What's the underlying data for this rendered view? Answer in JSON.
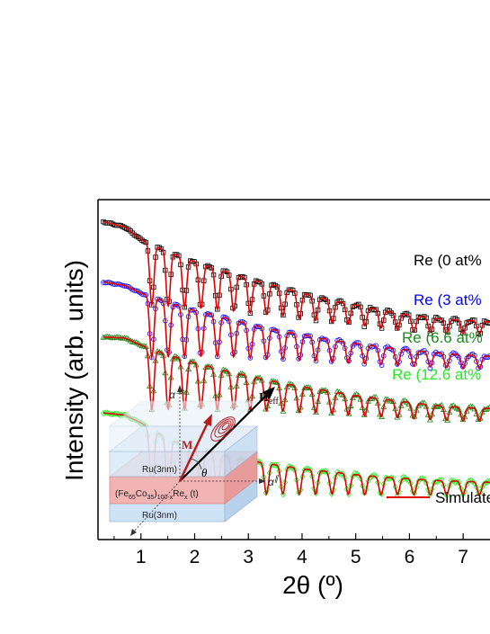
{
  "chart_data": {
    "type": "line",
    "xlabel": "2θ (º)",
    "ylabel": "Intensity (arb. units)",
    "xlim": [
      0.2,
      7.5
    ],
    "x_ticks": [
      "1",
      "2",
      "3",
      "4",
      "5",
      "6",
      "7"
    ],
    "log_y": true,
    "y_ticks_shown": false,
    "series": [
      {
        "name": "Re (0 at%",
        "color": "#000000",
        "fit_color": "#e00000",
        "marker": "square",
        "x": [
          0.3,
          0.7,
          1.0,
          1.5,
          2.0,
          2.5,
          3.0,
          3.5,
          4.0,
          4.5,
          5.0,
          5.5,
          6.0,
          6.5,
          7.0,
          7.5
        ],
        "y": [
          100,
          90,
          70,
          55,
          45,
          38,
          32,
          28,
          24,
          21,
          19,
          17,
          15.5,
          14.5,
          14,
          13.5
        ]
      },
      {
        "name": "Re (3 at%",
        "color": "#0000ff",
        "fit_color": "#e00000",
        "marker": "circle",
        "x": [
          0.3,
          0.7,
          1.0,
          1.5,
          2.0,
          2.5,
          3.0,
          3.5,
          4.0,
          4.5,
          5.0,
          5.5,
          6.0,
          6.5,
          7.0,
          7.5
        ],
        "y": [
          30,
          28,
          24,
          20,
          17,
          15,
          13,
          11.5,
          10.5,
          9.5,
          8.8,
          8.2,
          7.7,
          7.3,
          7.0,
          6.8
        ]
      },
      {
        "name": "Re (6.6 at%",
        "color": "#1a8a1a",
        "fit_color": "#e00000",
        "marker": "triangle",
        "x": [
          0.3,
          0.7,
          1.0,
          1.5,
          2.0,
          2.5,
          3.0,
          3.5,
          4.0,
          4.5,
          5.0,
          5.5,
          6.0,
          6.5,
          7.0,
          7.5
        ],
        "y": [
          10,
          9.8,
          8.5,
          7.0,
          6.0,
          5.2,
          4.6,
          4.1,
          3.7,
          3.4,
          3.1,
          2.9,
          2.7,
          2.55,
          2.45,
          2.4
        ]
      },
      {
        "name": "Re (12.6 at%",
        "color": "#22ee22",
        "fit_color": "#e00000",
        "marker": "diamond",
        "x": [
          0.3,
          0.7,
          1.0,
          1.5,
          2.0,
          2.5,
          3.0,
          3.5,
          4.0,
          4.5,
          5.0,
          5.5,
          6.0,
          6.5,
          7.0,
          7.5
        ],
        "y": [
          2.2,
          2.1,
          1.8,
          1.3,
          1.1,
          0.95,
          0.85,
          0.78,
          0.72,
          0.68,
          0.64,
          0.61,
          0.59,
          0.57,
          0.56,
          0.55
        ]
      }
    ],
    "legend": {
      "entries": [
        "Simulate"
      ],
      "color": "#e00000",
      "placement": "bottom-right"
    }
  },
  "inset": {
    "top_layer": "Ru(3nm)",
    "middle_layer": "(Fe65Co35)100-xRex (t)",
    "bottom_layer": "Ru(3nm)",
    "m_label": "M",
    "heff_label": "H",
    "heff_sub": "eff",
    "theta_label": "θ",
    "alpha_perp": "α",
    "alpha_perp_sup": "⊥",
    "alpha_par": "α",
    "alpha_par_sup": "∥",
    "colors": {
      "ru": "#cfe3f7",
      "ferro": "#f2b3b3",
      "m_arrow": "#b31d1d",
      "heff_arrow": "#000000"
    }
  }
}
